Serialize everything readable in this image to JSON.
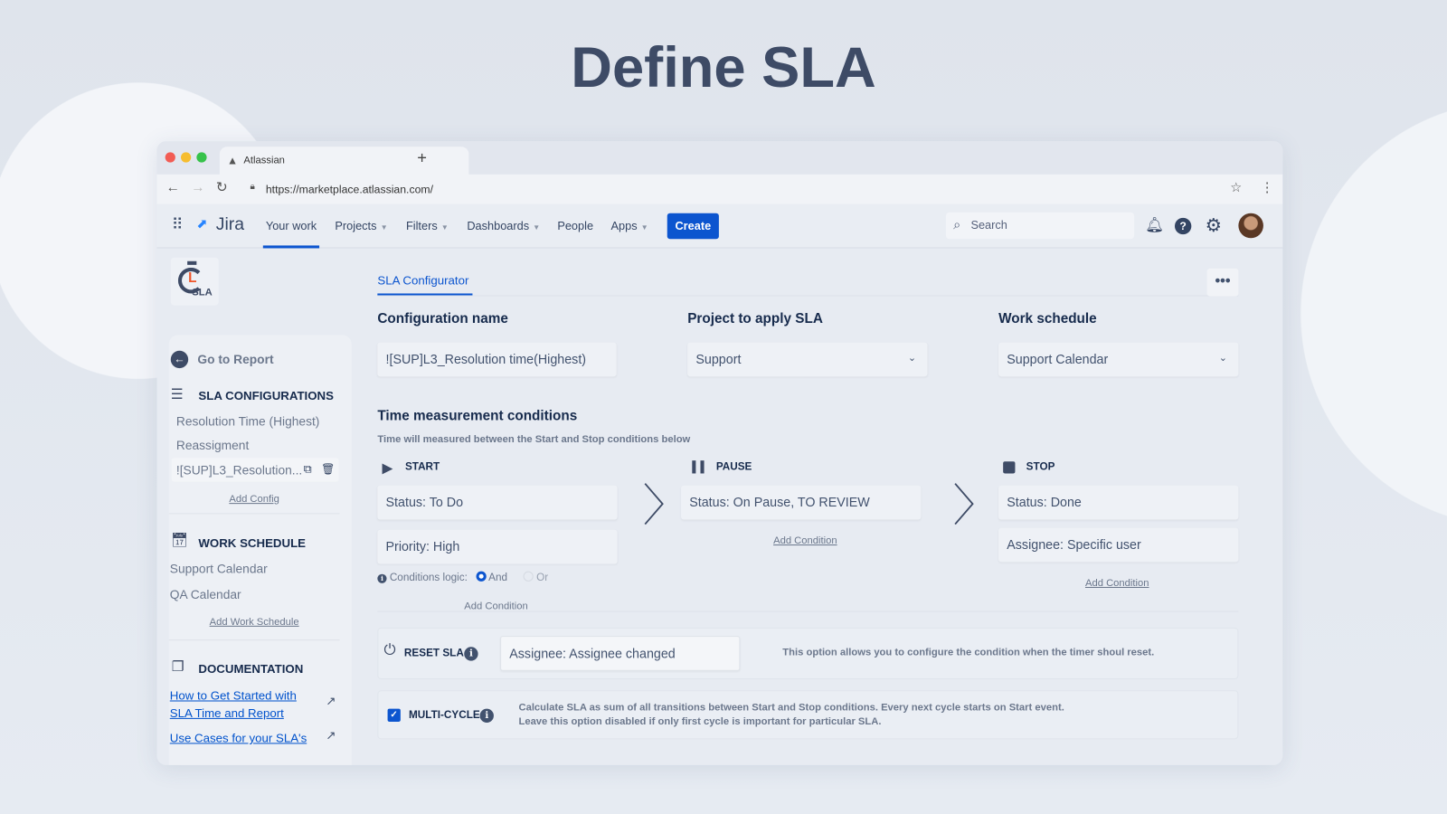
{
  "hero_title": "Define SLA",
  "browser": {
    "tab_title": "Atlassian",
    "url": "https://marketplace.atlassian.com/",
    "new_tab": "+"
  },
  "jira": {
    "logo": "Jira",
    "nav": [
      {
        "label": "Your work",
        "active": true
      },
      {
        "label": "Projects"
      },
      {
        "label": "Filters"
      },
      {
        "label": "Dashboards"
      },
      {
        "label": "People"
      },
      {
        "label": "Apps"
      }
    ],
    "create": "Create",
    "search_placeholder": "Search"
  },
  "app_logo": "SLA",
  "sidebar": {
    "go_to_report": "Go to Report",
    "sla_configurations": {
      "title": "SLA CONFIGURATIONS",
      "items": [
        "Resolution Time (Highest)",
        "Reassigment",
        "![SUP]L3_Resolution..."
      ],
      "add": "Add Config"
    },
    "work_schedule": {
      "title": "WORK SCHEDULE",
      "items": [
        "Support Calendar",
        "QA Calendar"
      ],
      "add": "Add Work Schedule"
    },
    "documentation": {
      "title": "DOCUMENTATION",
      "links": [
        "How to Get Started with SLA Time and Report",
        "Use Cases for your SLA's"
      ]
    }
  },
  "main": {
    "tab": "SLA Configurator",
    "config_name": {
      "label": "Configuration name",
      "value": "![SUP]L3_Resolution time(Highest)"
    },
    "project": {
      "label": "Project to apply SLA",
      "value": "Support"
    },
    "work_schedule": {
      "label": "Work schedule",
      "value": "Support Calendar"
    },
    "time": {
      "title": "Time measurement conditions",
      "subtitle": "Time will measured between the Start and Stop conditions below"
    },
    "start": {
      "label": "START",
      "conditions": [
        "Status: To Do",
        "Priority: High"
      ],
      "logic_label": "Conditions logic:",
      "logic_options": [
        "And",
        "Or"
      ],
      "logic_selected": "And",
      "add": "Add Condition"
    },
    "pause": {
      "label": "PAUSE",
      "conditions": [
        "Status: On Pause, TO REVIEW"
      ],
      "add": "Add Condition"
    },
    "stop": {
      "label": "STOP",
      "conditions": [
        "Status: Done",
        "Assignee: Specific user"
      ],
      "add": "Add Condition"
    },
    "reset": {
      "label": "RESET SLA",
      "value": "Assignee: Assignee changed",
      "description": "This option allows you to configure the condition when the timer shoul reset."
    },
    "multicycle": {
      "label": "MULTI-CYCLE",
      "checked": true,
      "description_1": "Calculate SLA as sum of all transitions between Start and Stop conditions. Every next cycle starts on Start event.",
      "description_2": "Leave this option disabled if only first cycle is important for particular SLA."
    }
  },
  "colors": {
    "accent": "#0c55cf",
    "text": "#172b4d",
    "logo_red": "#f0562a"
  }
}
